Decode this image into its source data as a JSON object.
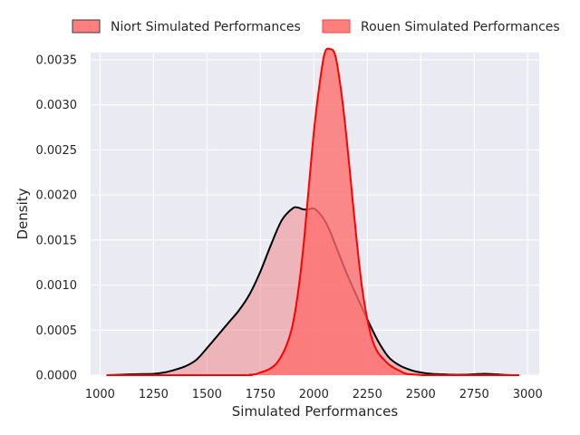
{
  "chart_data": {
    "type": "area",
    "title": "",
    "xlabel": "Simulated Performances",
    "ylabel": "Density",
    "xlim": [
      956,
      3054
    ],
    "ylim": [
      0,
      0.00358
    ],
    "x_ticks": [
      1000,
      1250,
      1500,
      1750,
      2000,
      2250,
      2500,
      2750,
      3000
    ],
    "y_ticks": [
      0.0,
      0.0005,
      0.001,
      0.0015,
      0.002,
      0.0025,
      0.003,
      0.0035
    ],
    "y_tick_labels": [
      "0.0000",
      "0.0005",
      "0.0010",
      "0.0015",
      "0.0020",
      "0.0025",
      "0.0030",
      "0.0035"
    ],
    "grid": true,
    "legend_position": "top-center",
    "series": [
      {
        "name": "Niort Simulated Performances",
        "fill_color": "#f08080",
        "fill_opacity": 0.5,
        "line_color": "#000000",
        "x": [
          1030,
          1100,
          1150,
          1200,
          1250,
          1300,
          1350,
          1400,
          1450,
          1500,
          1550,
          1600,
          1650,
          1700,
          1750,
          1800,
          1850,
          1900,
          1925,
          1950,
          1975,
          2000,
          2025,
          2050,
          2075,
          2100,
          2150,
          2200,
          2250,
          2300,
          2350,
          2400,
          2450,
          2500,
          2550,
          2600,
          2650,
          2700,
          2750,
          2800,
          2850,
          2900,
          2960
        ],
        "y": [
          0.0,
          5e-06,
          1e-05,
          1.2e-05,
          1.5e-05,
          3e-05,
          6e-05,
          0.0001,
          0.00017,
          0.0003,
          0.00044,
          0.00058,
          0.00072,
          0.0009,
          0.00115,
          0.00145,
          0.00172,
          0.00185,
          0.00186,
          0.00184,
          0.00184,
          0.00185,
          0.0018,
          0.00172,
          0.0016,
          0.00145,
          0.00115,
          0.00088,
          0.00062,
          0.00038,
          0.0002,
          0.00011,
          6e-05,
          3e-05,
          1.5e-05,
          1e-05,
          5e-06,
          5e-06,
          1e-05,
          1.5e-05,
          1e-05,
          3e-06,
          0.0
        ]
      },
      {
        "name": "Rouen Simulated Performances",
        "fill_color": "#ff6b6b",
        "fill_opacity": 0.78,
        "line_color": "#ff0000",
        "x": [
          1030,
          1650,
          1700,
          1725,
          1750,
          1775,
          1800,
          1825,
          1850,
          1875,
          1900,
          1925,
          1950,
          1975,
          2000,
          2025,
          2050,
          2075,
          2100,
          2125,
          2150,
          2175,
          2200,
          2225,
          2250,
          2275,
          2300,
          2325,
          2350,
          2375,
          2400,
          2425,
          2450,
          2500,
          2550,
          2960
        ],
        "y": [
          0.0,
          0.0,
          5e-06,
          1e-05,
          3e-05,
          5e-05,
          8e-05,
          0.00013,
          0.00022,
          0.00035,
          0.00055,
          0.0009,
          0.0014,
          0.00205,
          0.0027,
          0.0032,
          0.00357,
          0.00362,
          0.00355,
          0.0032,
          0.0027,
          0.0021,
          0.0015,
          0.00098,
          0.00062,
          0.00038,
          0.00025,
          0.00018,
          0.00012,
          8e-05,
          5e-05,
          2e-05,
          1e-05,
          3e-06,
          0.0,
          0.0
        ]
      }
    ]
  }
}
